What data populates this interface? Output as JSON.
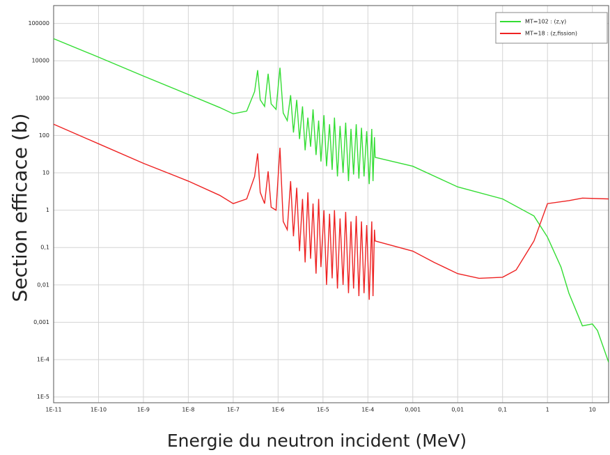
{
  "chart_data": {
    "type": "line",
    "xlabel": "Energie du neutron incident (MeV)",
    "ylabel": "Section efficace (b)",
    "xscale": "log",
    "yscale": "log",
    "grid": true,
    "legend": "upper right",
    "xlim": [
      1e-11,
      23
    ],
    "ylim": [
      7e-06,
      300000
    ],
    "xticks": [
      {
        "value": 1e-11,
        "label": "1E-11"
      },
      {
        "value": 1e-10,
        "label": "1E-10"
      },
      {
        "value": 1e-09,
        "label": "1E-9"
      },
      {
        "value": 1e-08,
        "label": "1E-8"
      },
      {
        "value": 1e-07,
        "label": "1E-7"
      },
      {
        "value": 1e-06,
        "label": "1E-6"
      },
      {
        "value": 1e-05,
        "label": "1E-5"
      },
      {
        "value": 0.0001,
        "label": "1E-4"
      },
      {
        "value": 0.001,
        "label": "0,001"
      },
      {
        "value": 0.01,
        "label": "0,01"
      },
      {
        "value": 0.1,
        "label": "0,1"
      },
      1,
      10
    ],
    "yticks": [
      {
        "value": 1e-05,
        "label": "1E-5"
      },
      {
        "value": 0.0001,
        "label": "1E-4"
      },
      {
        "value": 0.001,
        "label": "0,001"
      },
      {
        "value": 0.01,
        "label": "0,01"
      },
      {
        "value": 0.1,
        "label": "0,1"
      },
      1,
      10,
      100,
      1000,
      10000,
      100000
    ],
    "series": [
      {
        "name": "MT=102 : (z,γ)",
        "color": "#33dd33",
        "x": [
          1e-11,
          1e-10,
          1e-09,
          1e-08,
          5e-08,
          1e-07,
          2e-07,
          3e-07,
          3.5e-07,
          4e-07,
          5e-07,
          6e-07,
          7e-07,
          9e-07,
          1.1e-06,
          1.3e-06,
          1.6e-06,
          1.9e-06,
          2.2e-06,
          2.6e-06,
          3e-06,
          3.5e-06,
          4e-06,
          4.6e-06,
          5.3e-06,
          6e-06,
          7e-06,
          8e-06,
          9e-06,
          1.05e-05,
          1.2e-05,
          1.4e-05,
          1.6e-05,
          1.8e-05,
          2.1e-05,
          2.4e-05,
          2.8e-05,
          3.2e-05,
          3.7e-05,
          4.2e-05,
          4.8e-05,
          5.5e-05,
          6.3e-05,
          7.2e-05,
          8.2e-05,
          9.4e-05,
          0.000107,
          0.000122,
          0.00013,
          0.00014,
          0.000145,
          0.001,
          0.01,
          0.1,
          0.5,
          1,
          2,
          3,
          6,
          10,
          13,
          23
        ],
        "values": [
          39000,
          12500,
          3900,
          1250,
          560,
          380,
          450,
          1500,
          5600,
          900,
          600,
          4500,
          700,
          500,
          6500,
          400,
          250,
          1200,
          120,
          900,
          80,
          600,
          40,
          300,
          50,
          500,
          30,
          250,
          20,
          350,
          15,
          200,
          12,
          300,
          8,
          180,
          10,
          220,
          6,
          150,
          9,
          200,
          7,
          160,
          8,
          130,
          5,
          150,
          6,
          90,
          26,
          15,
          4.2,
          2,
          0.7,
          0.19,
          0.03,
          0.006,
          0.0008,
          0.0009,
          0.0006,
          8.5e-05
        ]
      },
      {
        "name": "MT=18 : (z,fission)",
        "color": "#ee2222",
        "x": [
          1e-11,
          1e-10,
          1e-09,
          1e-08,
          5e-08,
          1e-07,
          2e-07,
          3e-07,
          3.5e-07,
          4e-07,
          5e-07,
          6e-07,
          7e-07,
          9e-07,
          1.1e-06,
          1.3e-06,
          1.6e-06,
          1.9e-06,
          2.2e-06,
          2.6e-06,
          3e-06,
          3.5e-06,
          4e-06,
          4.6e-06,
          5.3e-06,
          6e-06,
          7e-06,
          8e-06,
          9e-06,
          1.05e-05,
          1.2e-05,
          1.4e-05,
          1.6e-05,
          1.8e-05,
          2.1e-05,
          2.4e-05,
          2.8e-05,
          3.2e-05,
          3.7e-05,
          4.2e-05,
          4.8e-05,
          5.5e-05,
          6.3e-05,
          7.2e-05,
          8.2e-05,
          9.4e-05,
          0.000107,
          0.000122,
          0.00013,
          0.00014,
          0.000145,
          0.001,
          0.003,
          0.01,
          0.03,
          0.1,
          0.2,
          0.5,
          1,
          3,
          6,
          23
        ],
        "values": [
          200,
          60,
          18,
          6,
          2.5,
          1.5,
          2,
          8,
          33,
          3,
          1.5,
          11,
          1.2,
          1,
          47,
          0.5,
          0.3,
          6,
          0.2,
          4,
          0.08,
          2,
          0.04,
          3,
          0.05,
          1.5,
          0.02,
          2,
          0.03,
          1,
          0.01,
          0.8,
          0.015,
          1,
          0.008,
          0.6,
          0.01,
          0.9,
          0.006,
          0.5,
          0.008,
          0.7,
          0.005,
          0.5,
          0.006,
          0.4,
          0.004,
          0.5,
          0.005,
          0.3,
          0.15,
          0.08,
          0.04,
          0.02,
          0.015,
          0.016,
          0.025,
          0.15,
          1.5,
          1.8,
          2.1,
          2
        ]
      }
    ]
  }
}
